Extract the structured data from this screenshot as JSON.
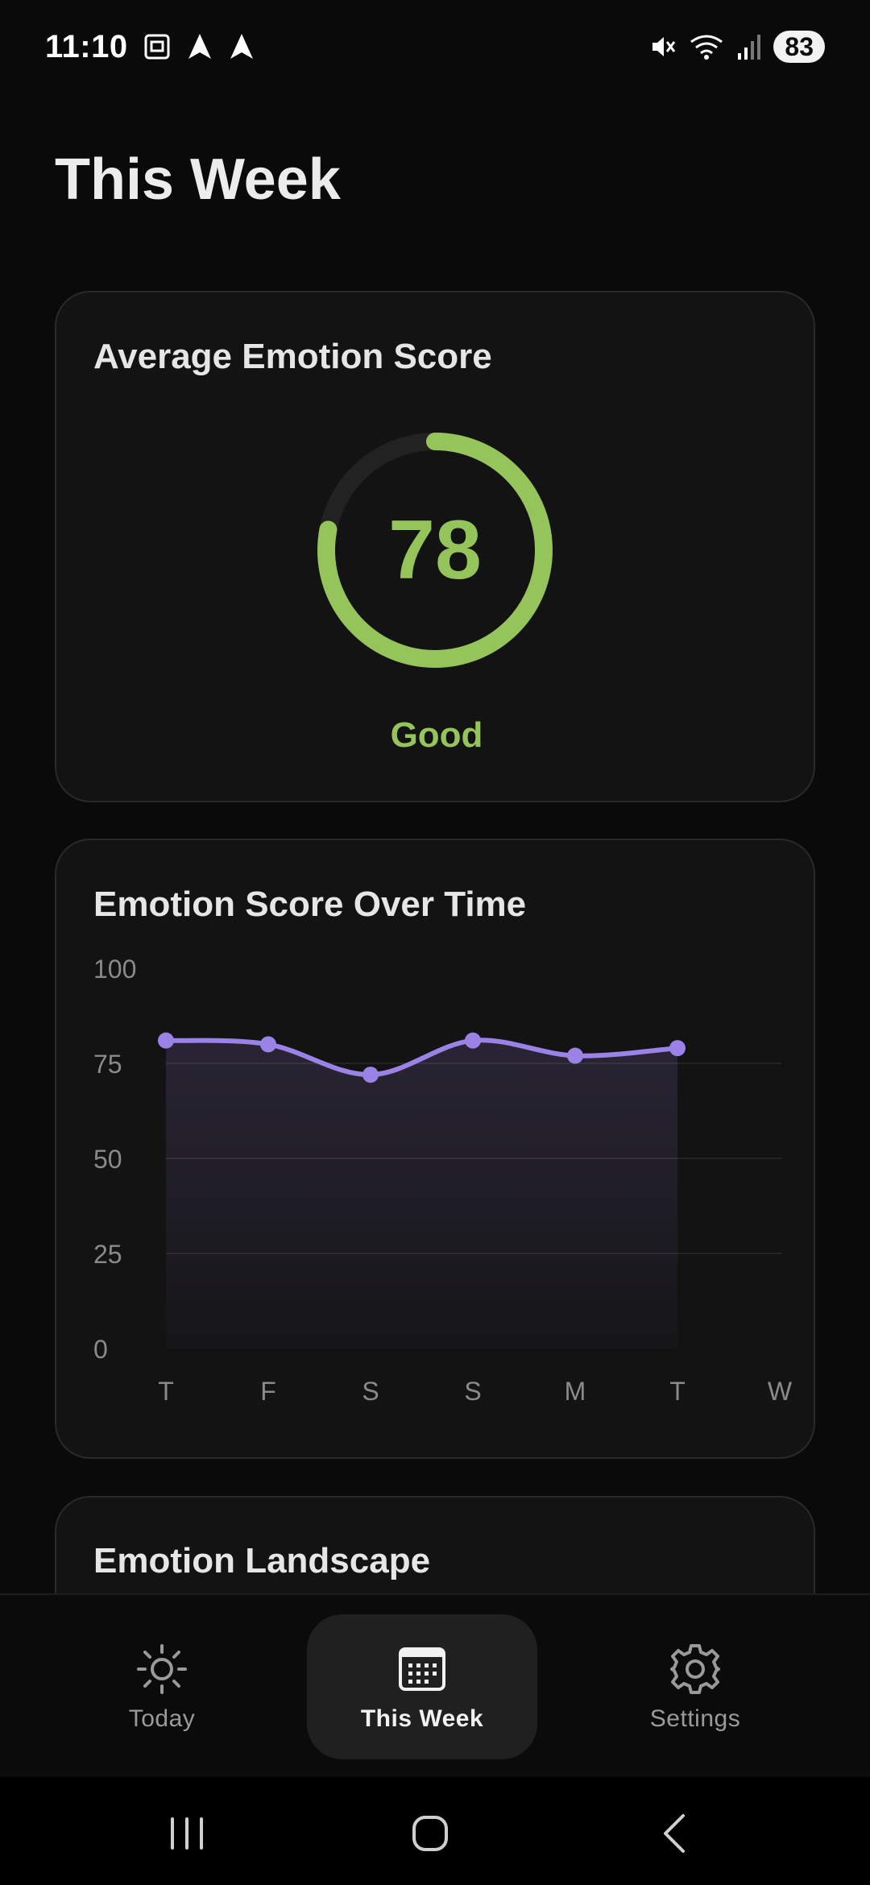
{
  "status_bar": {
    "time": "11:10",
    "battery": "83",
    "icons_left": [
      "screenshot-icon",
      "navigation-arrow-icon",
      "navigation-arrow-icon"
    ],
    "icons_right": [
      "mute-icon",
      "wifi-icon",
      "signal-icon"
    ]
  },
  "page": {
    "title": "This Week"
  },
  "score_card": {
    "title": "Average Emotion Score",
    "value": "78",
    "level": 0.78,
    "label": "Good",
    "accent_color": "#95c45b"
  },
  "chart_card": {
    "title": "Emotion Score Over Time"
  },
  "chart_data": {
    "type": "area",
    "title": "",
    "xlabel": "",
    "ylabel": "",
    "categories": [
      "T",
      "F",
      "S",
      "S",
      "M",
      "T",
      "W"
    ],
    "y_ticks": [
      "0",
      "25",
      "50",
      "75",
      "100"
    ],
    "ylim": [
      0,
      100
    ],
    "series": [
      {
        "values": [
          81,
          80,
          72,
          81,
          77,
          79,
          null
        ],
        "color": "#9b82e6"
      }
    ],
    "grid": true
  },
  "landscape_card": {
    "title": "Emotion Landscape"
  },
  "bottom_nav": {
    "items": [
      {
        "label": "Today",
        "icon": "sun-icon",
        "active": false
      },
      {
        "label": "This Week",
        "icon": "calendar-icon",
        "active": true
      },
      {
        "label": "Settings",
        "icon": "gear-icon",
        "active": false
      }
    ]
  },
  "system_nav": {
    "buttons": [
      "recent-apps-icon",
      "home-icon",
      "back-icon"
    ]
  }
}
